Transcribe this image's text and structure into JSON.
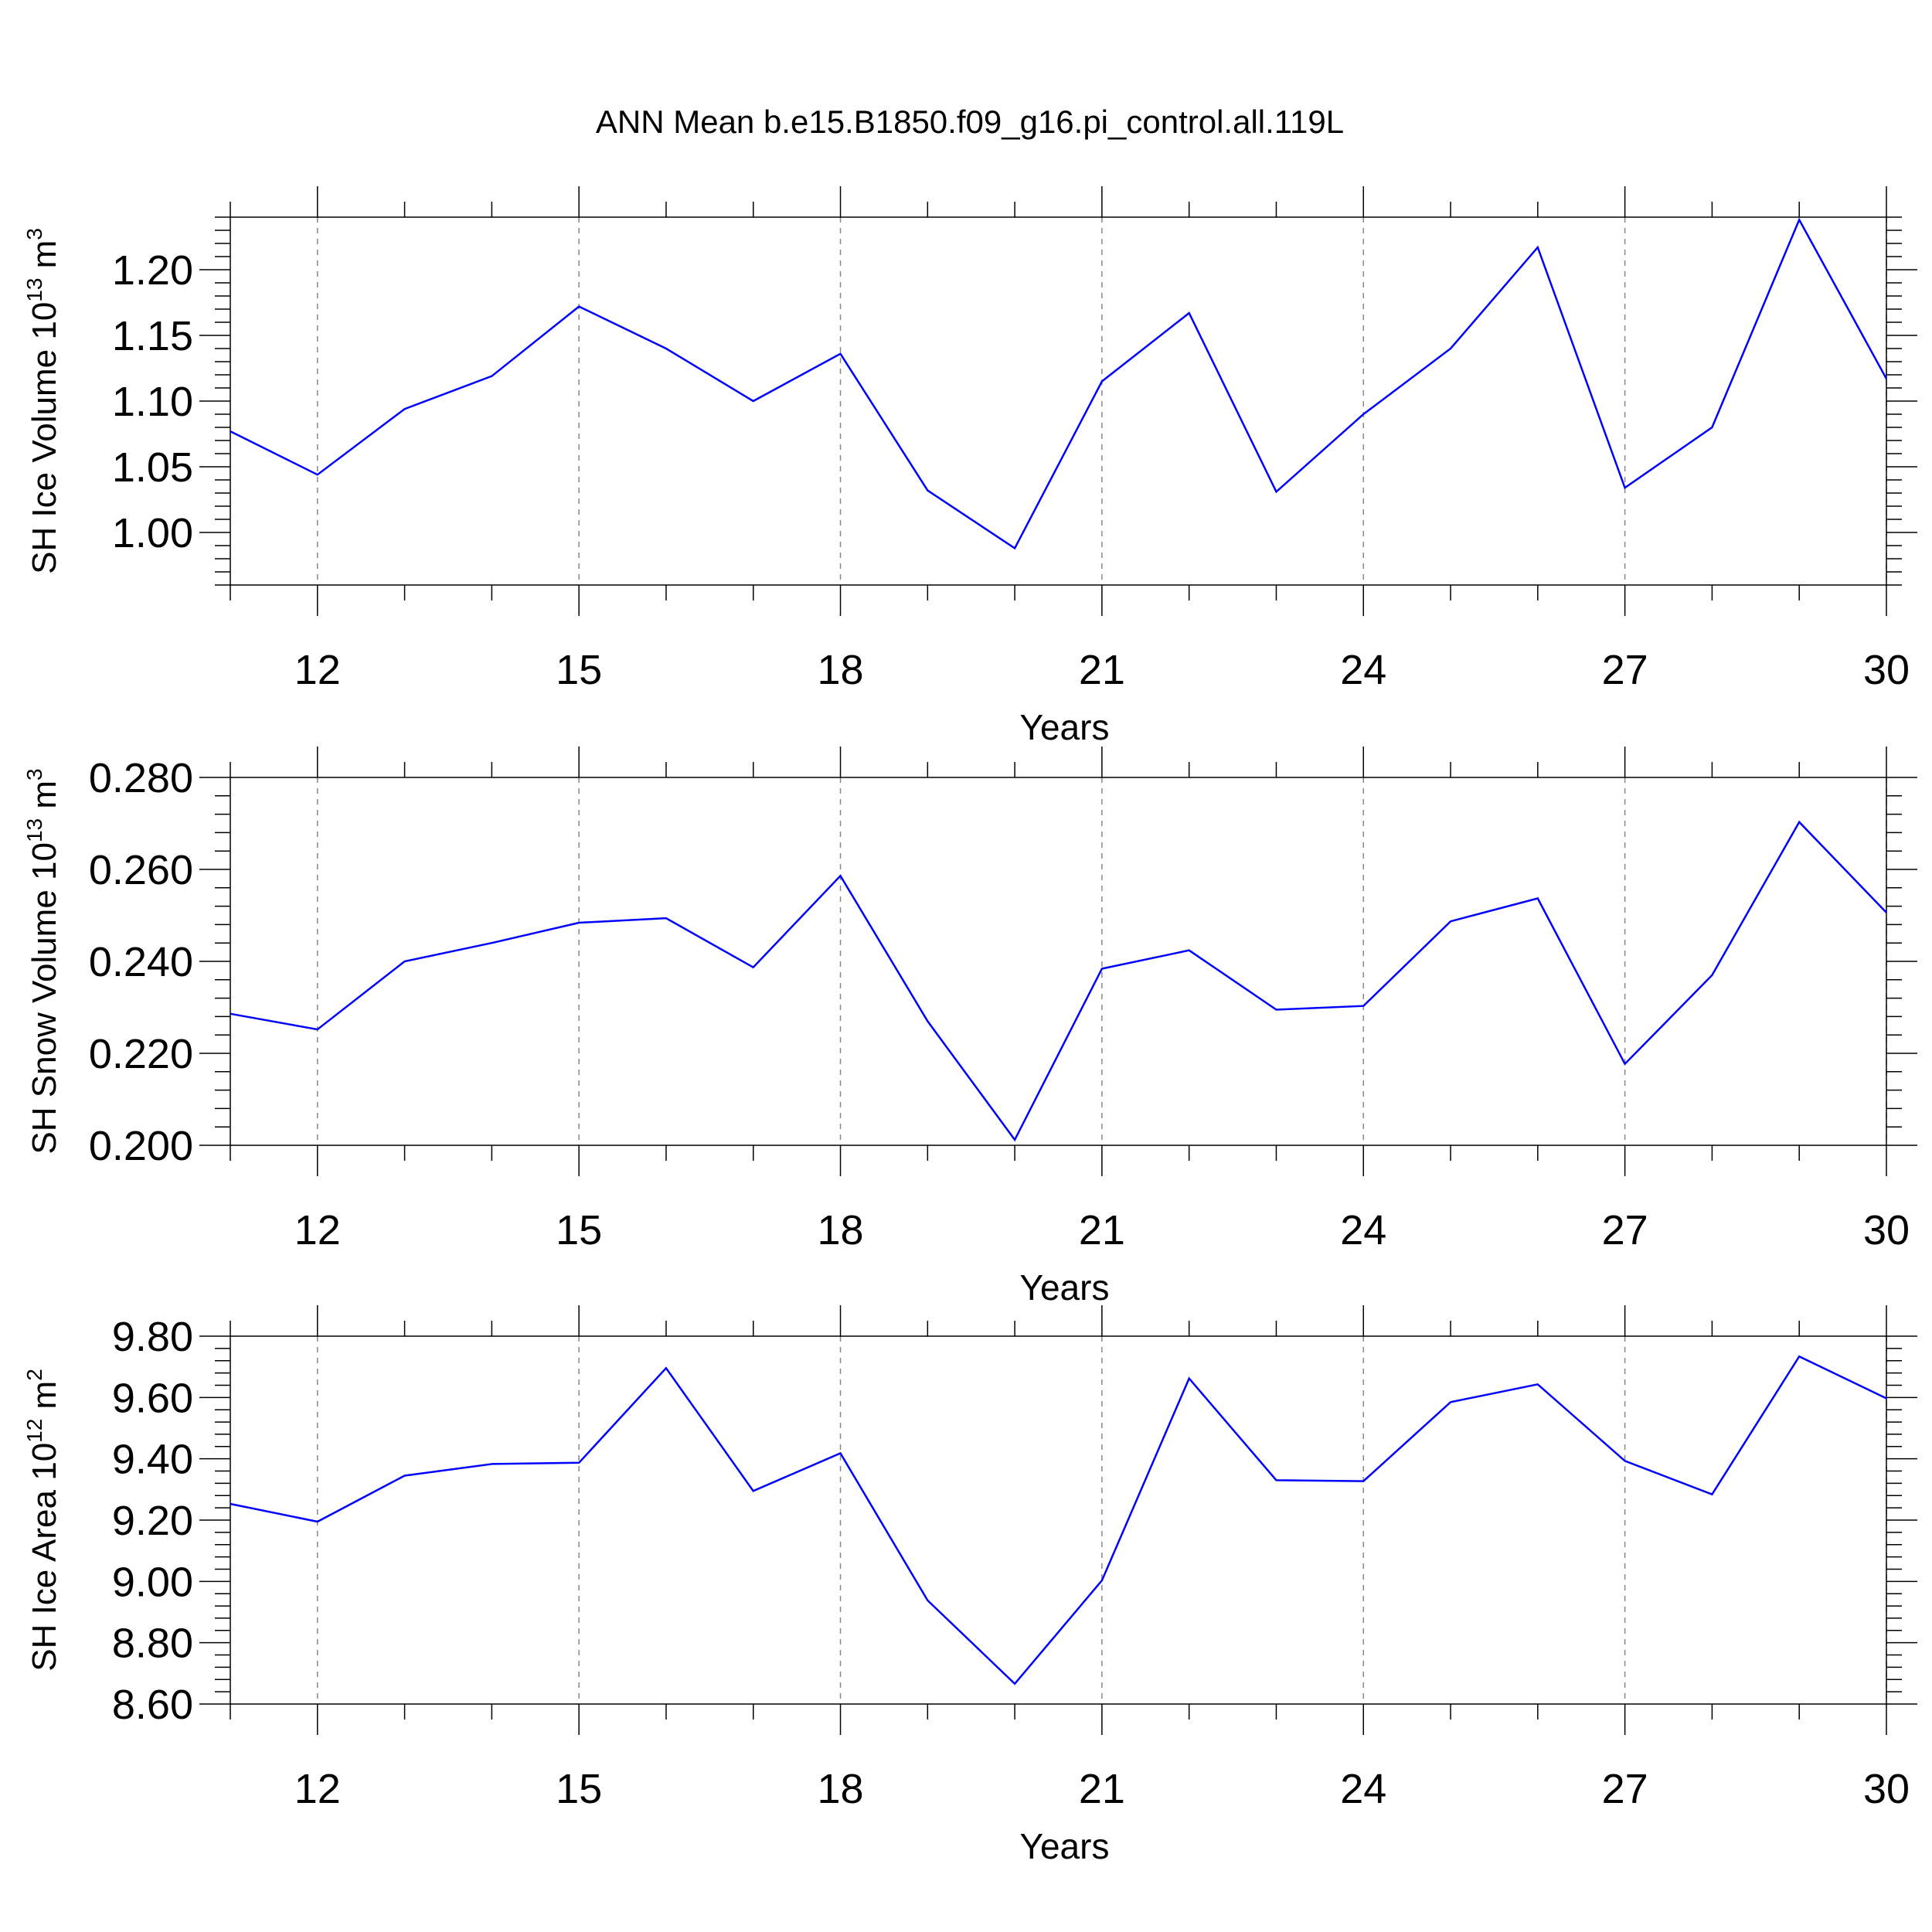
{
  "figure": {
    "title": "ANN Mean b.e15.B1850.f09_g16.pi_control.all.119L"
  },
  "chart_data": [
    {
      "type": "line",
      "ylabel": {
        "text": "SH Ice Volume 10",
        "sup": "13",
        "unit": " m",
        "unit_sup": "3"
      },
      "xlabel": "Years",
      "xlim": [
        11,
        30
      ],
      "ylim": [
        0.96,
        1.24
      ],
      "xticks": [
        12,
        15,
        18,
        21,
        24,
        27,
        30
      ],
      "xtick_labels": [
        "12",
        "15",
        "18",
        "21",
        "24",
        "27",
        "30"
      ],
      "yticks": [
        1.0,
        1.05,
        1.1,
        1.15,
        1.2
      ],
      "ytick_labels": [
        "1.00",
        "1.05",
        "1.10",
        "1.15",
        "1.20"
      ],
      "grid": "vertical-dashed",
      "line_color": "#0000ff",
      "x": [
        11,
        12,
        13,
        14,
        15,
        16,
        17,
        18,
        19,
        20,
        21,
        22,
        23,
        24,
        25,
        26,
        27,
        28,
        29,
        30
      ],
      "values": [
        1.077,
        1.044,
        1.094,
        1.119,
        1.172,
        1.14,
        1.1,
        1.136,
        1.032,
        0.988,
        1.115,
        1.167,
        1.031,
        1.09,
        1.14,
        1.217,
        1.034,
        1.08,
        1.238,
        1.117
      ]
    },
    {
      "type": "line",
      "ylabel": {
        "text": "SH Snow Volume 10",
        "sup": "13",
        "unit": " m",
        "unit_sup": "3"
      },
      "xlabel": "Years",
      "xlim": [
        11,
        30
      ],
      "ylim": [
        0.2,
        0.28
      ],
      "xticks": [
        12,
        15,
        18,
        21,
        24,
        27,
        30
      ],
      "xtick_labels": [
        "12",
        "15",
        "18",
        "21",
        "24",
        "27",
        "30"
      ],
      "yticks": [
        0.2,
        0.22,
        0.24,
        0.26,
        0.28
      ],
      "ytick_labels": [
        "0.200",
        "0.220",
        "0.240",
        "0.260",
        "0.280"
      ],
      "grid": "vertical-dashed",
      "line_color": "#0000ff",
      "x": [
        11,
        12,
        13,
        14,
        15,
        16,
        17,
        18,
        19,
        20,
        21,
        22,
        23,
        24,
        25,
        26,
        27,
        28,
        29,
        30
      ],
      "values": [
        0.2286,
        0.2252,
        0.24,
        0.244,
        0.2484,
        0.2494,
        0.2387,
        0.2586,
        0.227,
        0.2012,
        0.2384,
        0.2424,
        0.2295,
        0.2303,
        0.2487,
        0.2537,
        0.2177,
        0.237,
        0.2703,
        0.2506
      ]
    },
    {
      "type": "line",
      "ylabel": {
        "text": "SH Ice Area 10",
        "sup": "12",
        "unit": " m",
        "unit_sup": "2"
      },
      "xlabel": "Years",
      "xlim": [
        11,
        30
      ],
      "ylim": [
        8.6,
        9.8
      ],
      "xticks": [
        12,
        15,
        18,
        21,
        24,
        27,
        30
      ],
      "xtick_labels": [
        "12",
        "15",
        "18",
        "21",
        "24",
        "27",
        "30"
      ],
      "yticks": [
        8.6,
        8.8,
        9.0,
        9.2,
        9.4,
        9.6,
        9.8
      ],
      "ytick_labels": [
        "8.60",
        "8.80",
        "9.00",
        "9.20",
        "9.40",
        "9.60",
        "9.80"
      ],
      "grid": "vertical-dashed",
      "line_color": "#0000ff",
      "x": [
        11,
        12,
        13,
        14,
        15,
        16,
        17,
        18,
        19,
        20,
        21,
        22,
        23,
        24,
        25,
        26,
        27,
        28,
        29,
        30
      ],
      "values": [
        9.253,
        9.195,
        9.345,
        9.383,
        9.387,
        9.696,
        9.295,
        9.418,
        8.938,
        8.666,
        9.003,
        9.662,
        9.33,
        9.327,
        9.585,
        9.643,
        9.393,
        9.284,
        9.734,
        9.597
      ]
    }
  ]
}
